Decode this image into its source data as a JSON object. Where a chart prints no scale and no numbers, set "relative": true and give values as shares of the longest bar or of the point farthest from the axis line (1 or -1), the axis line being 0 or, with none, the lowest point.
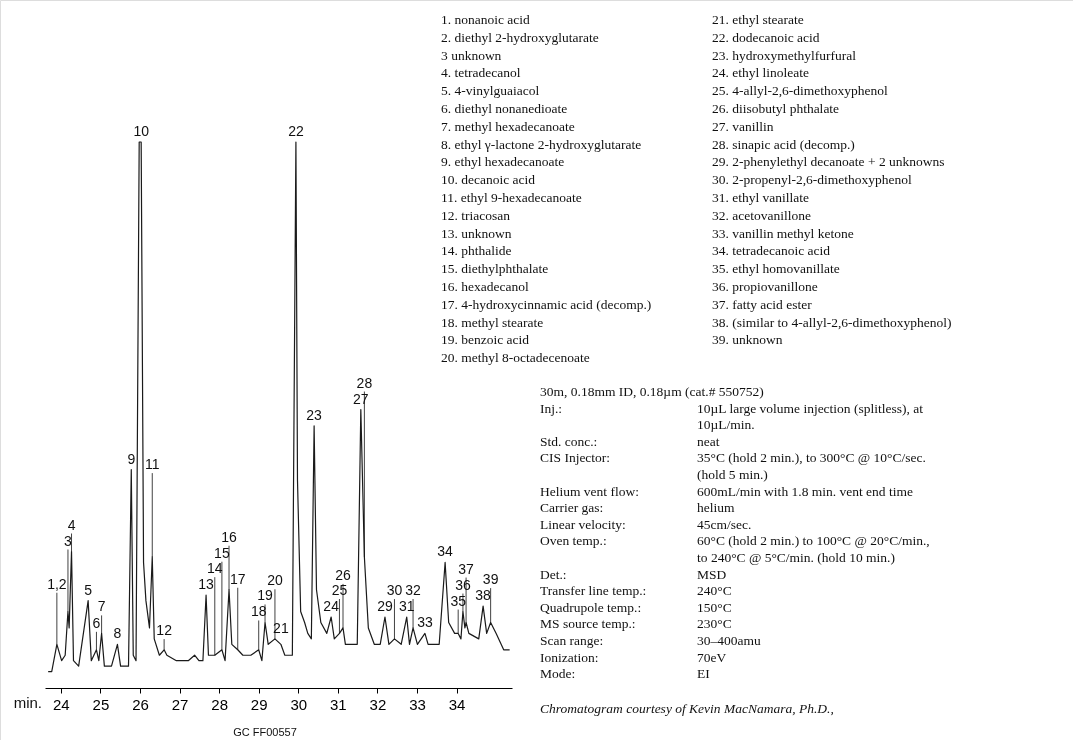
{
  "chart_data": {
    "type": "line",
    "relative": true,
    "xlabel": "min.",
    "subtitle": "30m, 0.18mm ID, 0.18µm (cat.# 550752)",
    "xlim": [
      23.6,
      35.4
    ],
    "xticks": [
      24,
      25,
      26,
      27,
      28,
      29,
      30,
      31,
      32,
      33,
      34
    ],
    "series": [
      {
        "color": "#1a1a1a",
        "x": [
          23.68,
          23.77,
          23.9,
          24.02,
          24.11,
          24.18,
          24.21,
          24.27,
          24.32,
          24.45,
          24.69,
          24.77,
          24.9,
          24.96,
          25.03,
          25.1,
          25.28,
          25.43,
          25.51,
          25.71,
          25.78,
          25.83,
          25.9,
          25.98,
          26.03,
          26.09,
          26.15,
          26.24,
          26.31,
          26.36,
          26.49,
          26.61,
          26.68,
          26.92,
          27.22,
          27.38,
          27.49,
          27.59,
          27.67,
          27.73,
          27.89,
          28.07,
          28.15,
          28.25,
          28.32,
          28.47,
          28.6,
          28.8,
          29.0,
          29.08,
          29.16,
          29.24,
          29.41,
          29.56,
          29.66,
          29.85,
          29.94,
          29.98,
          30.06,
          30.16,
          30.24,
          30.33,
          30.4,
          30.46,
          30.57,
          30.72,
          30.83,
          30.91,
          31.04,
          31.13,
          31.19,
          31.49,
          31.58,
          31.67,
          31.77,
          31.92,
          32.07,
          32.19,
          32.29,
          32.43,
          32.6,
          32.74,
          32.81,
          32.9,
          33.01,
          33.2,
          33.28,
          33.56,
          33.71,
          33.8,
          33.95,
          34.04,
          34.11,
          34.16,
          34.21,
          34.24,
          34.31,
          34.56,
          34.67,
          34.76,
          34.86,
          35.0,
          35.19,
          35.34
        ],
        "values": [
          0.03,
          0.03,
          0.08,
          0.05,
          0.06,
          0.14,
          0.11,
          0.25,
          0.05,
          0.04,
          0.16,
          0.05,
          0.07,
          0.05,
          0.1,
          0.04,
          0.04,
          0.08,
          0.04,
          0.04,
          0.4,
          0.06,
          0.05,
          1.0,
          1.0,
          0.23,
          0.16,
          0.11,
          0.24,
          0.09,
          0.06,
          0.07,
          0.06,
          0.05,
          0.05,
          0.06,
          0.05,
          0.05,
          0.17,
          0.06,
          0.06,
          0.07,
          0.05,
          0.18,
          0.08,
          0.07,
          0.06,
          0.06,
          0.07,
          0.05,
          0.12,
          0.08,
          0.09,
          0.08,
          0.06,
          0.06,
          1.0,
          0.38,
          0.14,
          0.12,
          0.1,
          0.09,
          0.48,
          0.18,
          0.12,
          0.1,
          0.13,
          0.09,
          0.1,
          0.11,
          0.08,
          0.08,
          0.51,
          0.24,
          0.11,
          0.08,
          0.08,
          0.13,
          0.08,
          0.09,
          0.08,
          0.13,
          0.08,
          0.11,
          0.08,
          0.1,
          0.08,
          0.08,
          0.23,
          0.12,
          0.1,
          0.1,
          0.09,
          0.14,
          0.11,
          0.12,
          0.1,
          0.09,
          0.15,
          0.1,
          0.12,
          0.1,
          0.07,
          0.07
        ]
      }
    ],
    "annotations": [
      {
        "text": "1,2",
        "x": 23.9,
        "y": 0.08
      },
      {
        "text": "3",
        "x": 24.18,
        "y": 0.14
      },
      {
        "text": "4",
        "x": 24.27,
        "y": 0.25
      },
      {
        "text": "5",
        "x": 24.69,
        "y": 0.16
      },
      {
        "text": "6",
        "x": 24.9,
        "y": 0.07
      },
      {
        "text": "7",
        "x": 25.03,
        "y": 0.1
      },
      {
        "text": "8",
        "x": 25.43,
        "y": 0.08
      },
      {
        "text": "9",
        "x": 25.78,
        "y": 0.4
      },
      {
        "text": "10",
        "x": 26.03,
        "y": 1.0
      },
      {
        "text": "11",
        "x": 26.31,
        "y": 0.24
      },
      {
        "text": "12",
        "x": 26.61,
        "y": 0.07
      },
      {
        "text": "13",
        "x": 27.67,
        "y": 0.17
      },
      {
        "text": "14",
        "x": 27.89,
        "y": 0.06
      },
      {
        "text": "15",
        "x": 28.07,
        "y": 0.07
      },
      {
        "text": "16",
        "x": 28.25,
        "y": 0.18
      },
      {
        "text": "17",
        "x": 28.47,
        "y": 0.07
      },
      {
        "text": "18",
        "x": 29.0,
        "y": 0.07
      },
      {
        "text": "19",
        "x": 29.16,
        "y": 0.12
      },
      {
        "text": "20",
        "x": 29.41,
        "y": 0.09
      },
      {
        "text": "21",
        "x": 29.56,
        "y": 0.08
      },
      {
        "text": "22",
        "x": 29.94,
        "y": 1.0
      },
      {
        "text": "23",
        "x": 30.4,
        "y": 0.48
      },
      {
        "text": "24",
        "x": 30.83,
        "y": 0.13
      },
      {
        "text": "25",
        "x": 31.04,
        "y": 0.1
      },
      {
        "text": "26",
        "x": 31.13,
        "y": 0.11
      },
      {
        "text": "27",
        "x": 31.58,
        "y": 0.51
      },
      {
        "text": "28",
        "x": 31.67,
        "y": 0.24
      },
      {
        "text": "29",
        "x": 32.19,
        "y": 0.13
      },
      {
        "text": "30",
        "x": 32.43,
        "y": 0.09
      },
      {
        "text": "31",
        "x": 32.74,
        "y": 0.13
      },
      {
        "text": "32",
        "x": 32.9,
        "y": 0.11
      },
      {
        "text": "33",
        "x": 33.2,
        "y": 0.1
      },
      {
        "text": "34",
        "x": 33.71,
        "y": 0.23
      },
      {
        "text": "35",
        "x": 34.04,
        "y": 0.1
      },
      {
        "text": "36",
        "x": 34.16,
        "y": 0.14
      },
      {
        "text": "37",
        "x": 34.24,
        "y": 0.12
      },
      {
        "text": "38",
        "x": 34.67,
        "y": 0.15
      },
      {
        "text": "39",
        "x": 34.86,
        "y": 0.12
      },
      "1. nonanoic acid",
      "2. diethyl 2-hydroxyglutarate",
      "3 unknown",
      "4. tetradecanol",
      "5. 4-vinylguaiacol",
      "6. diethyl nonanedioate",
      "7. methyl hexadecanoate",
      "8. ethyl γ-lactone 2-hydroxyglutarate",
      "9. ethyl hexadecanoate",
      "10. decanoic acid",
      "11. ethyl 9-hexadecanoate",
      "12. triacosan",
      "13. unknown",
      "14. phthalide",
      "15. diethylphthalate",
      "16. hexadecanol",
      "17. 4-hydroxycinnamic acid (decomp.)",
      "18. methyl stearate",
      "19. benzoic acid",
      "20. methyl 8-octadecenoate",
      "21. ethyl stearate",
      "22. dodecanoic acid",
      "23. hydroxymethylfurfural",
      "24. ethyl linoleate",
      "25. 4-allyl-2,6-dimethoxyphenol",
      "26. diisobutyl phthalate",
      "27. vanillin",
      "28. sinapic acid (decomp.)",
      "29. 2-phenylethyl decanoate + 2 unknowns",
      "30. 2-propenyl-2,6-dimethoxyphenol",
      "31. ethyl vanillate",
      "32. acetovanillone",
      "33. vanillin methyl ketone",
      "34. tetradecanoic acid",
      "35. ethyl homovanillate",
      "36. propiovanillone",
      "37. fatty acid ester",
      "38. (similar to 4-allyl-2,6-dimethoxyphenol)",
      "39. unknown",
      "Inj.:\t10µL large volume injection (splitless), at",
      "\t10µL/min.",
      "Std. conc.:\tneat",
      "CIS Injector:\t35°C (hold 2 min.), to 300°C @ 10°C/sec.",
      "\t(hold 5 min.)",
      "Helium vent flow:\t600mL/min with 1.8 min. vent end time",
      "Carrier gas:\thelium",
      "Linear velocity:\t45cm/sec.",
      "Oven temp.:\t60°C (hold 2 min.) to 100°C @ 20°C/min.,",
      "\tto 240°C @ 5°C/min. (hold 10 min.)",
      "Det.:\tMSD",
      "Transfer line temp.:\t240°C",
      "Quadrupole temp.:\t150°C",
      "MS source temp.:\t230°C",
      "Scan range:\t30–400amu",
      "Ionization:\t70eV",
      "Mode:\tEI",
      "Chromatogram courtesy of Kevin MacNamara, Ph.D.,",
      "GC FF00557"
    ]
  }
}
